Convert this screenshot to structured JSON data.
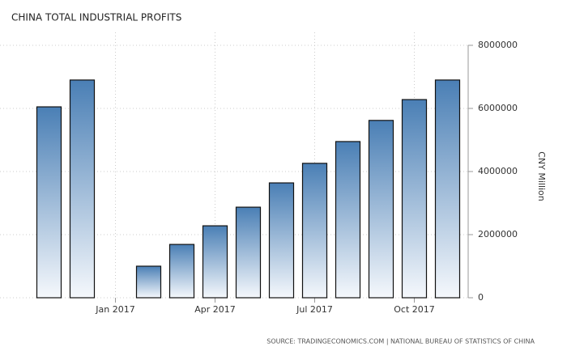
{
  "chart_data": {
    "type": "bar",
    "title": "CHINA TOTAL INDUSTRIAL PROFITS",
    "y_label": "CNY Million",
    "source": "SOURCE: TRADINGECONOMICS.COM | NATIONAL BUREAU OF STATISTICS OF CHINA",
    "categories": [
      null,
      null,
      "Jan 2017",
      null,
      null,
      "Apr 2017",
      null,
      null,
      "Jul 2017",
      null,
      null,
      "Oct 2017",
      null
    ],
    "values": [
      6050000,
      6900000,
      null,
      1000000,
      1690000,
      2280000,
      2870000,
      3640000,
      4260000,
      4950000,
      5620000,
      6280000,
      6900000
    ],
    "color": "#4a7fb5",
    "ylim": [
      0,
      8000000
    ],
    "yticks": [
      0,
      2000000,
      4000000,
      6000000,
      8000000
    ],
    "grid": true
  }
}
